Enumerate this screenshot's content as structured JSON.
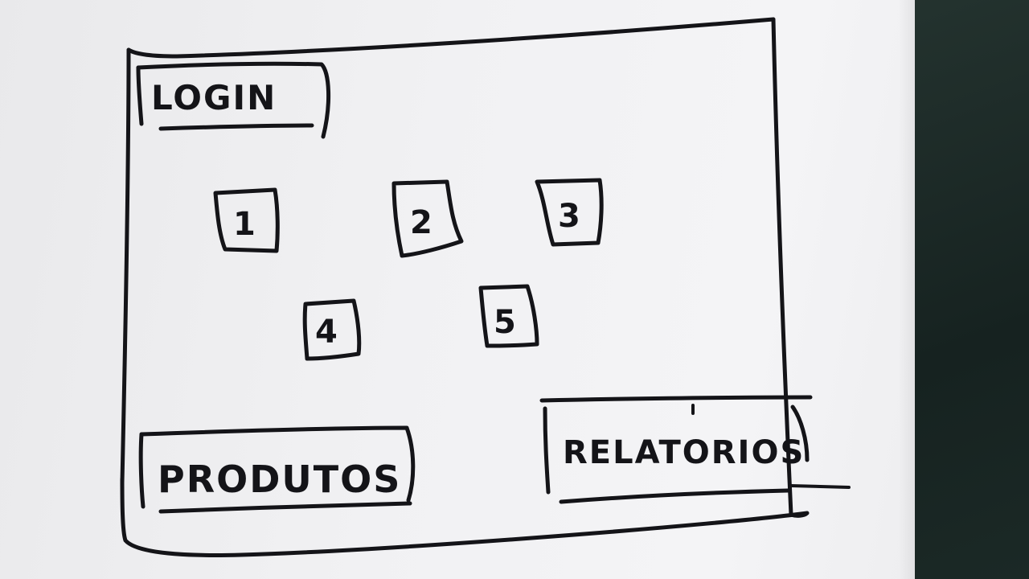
{
  "sketch": {
    "login_label": "LOGIN",
    "boxes": [
      "1",
      "2",
      "3",
      "4",
      "5"
    ],
    "produtos_label": "PRODUTOS",
    "relatorios_label": "RELATORIOS"
  }
}
